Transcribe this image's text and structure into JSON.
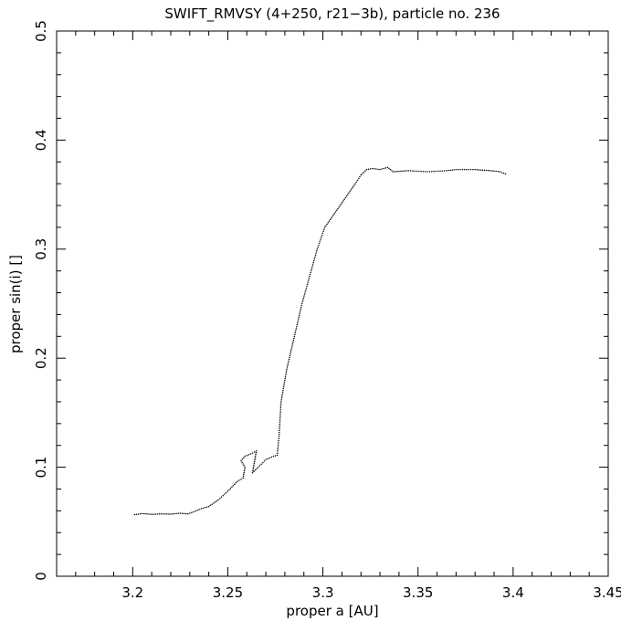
{
  "chart_data": {
    "type": "scatter",
    "title": "SWIFT_RMVSY (4+250, r21−3b), particle no. 236",
    "xlabel": "proper a [AU]",
    "ylabel": "proper sin(i) []",
    "xlim": [
      3.16,
      3.45
    ],
    "ylim": [
      0,
      0.5
    ],
    "xticks": [
      "3.2",
      "3.25",
      "3.3",
      "3.35",
      "3.4",
      "3.45"
    ],
    "yticks": [
      "0",
      "0.1",
      "0.2",
      "0.3",
      "0.4",
      "0.5"
    ],
    "grid": false,
    "marker": "dot",
    "color": "#000000",
    "series": [
      {
        "points": [
          [
            3.201,
            0.0565
          ],
          [
            3.205,
            0.0575
          ],
          [
            3.21,
            0.0568
          ],
          [
            3.215,
            0.0572
          ],
          [
            3.22,
            0.057
          ],
          [
            3.225,
            0.0578
          ],
          [
            3.229,
            0.0572
          ],
          [
            3.232,
            0.059
          ],
          [
            3.236,
            0.062
          ],
          [
            3.24,
            0.064
          ],
          [
            3.245,
            0.07
          ],
          [
            3.25,
            0.078
          ],
          [
            3.255,
            0.087
          ],
          [
            3.258,
            0.09
          ],
          [
            3.259,
            0.1
          ],
          [
            3.257,
            0.106
          ],
          [
            3.259,
            0.11
          ],
          [
            3.263,
            0.113
          ],
          [
            3.265,
            0.115
          ],
          [
            3.264,
            0.105
          ],
          [
            3.263,
            0.095
          ],
          [
            3.266,
            0.1
          ],
          [
            3.27,
            0.107
          ],
          [
            3.274,
            0.11
          ],
          [
            3.276,
            0.111
          ],
          [
            3.277,
            0.13
          ],
          [
            3.278,
            0.16
          ],
          [
            3.281,
            0.19
          ],
          [
            3.285,
            0.22
          ],
          [
            3.289,
            0.25
          ],
          [
            3.293,
            0.275
          ],
          [
            3.297,
            0.3
          ],
          [
            3.301,
            0.32
          ],
          [
            3.305,
            0.33
          ],
          [
            3.309,
            0.34
          ],
          [
            3.313,
            0.35
          ],
          [
            3.317,
            0.36
          ],
          [
            3.32,
            0.368
          ],
          [
            3.323,
            0.373
          ],
          [
            3.326,
            0.374
          ],
          [
            3.33,
            0.373
          ],
          [
            3.334,
            0.375
          ],
          [
            3.337,
            0.371
          ],
          [
            3.345,
            0.372
          ],
          [
            3.355,
            0.371
          ],
          [
            3.365,
            0.372
          ],
          [
            3.37,
            0.373
          ],
          [
            3.38,
            0.373
          ],
          [
            3.388,
            0.372
          ],
          [
            3.393,
            0.371
          ],
          [
            3.396,
            0.369
          ]
        ]
      }
    ]
  }
}
